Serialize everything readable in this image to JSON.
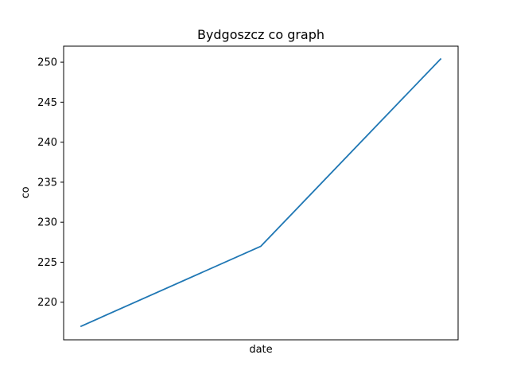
{
  "chart_data": {
    "type": "line",
    "title": "Bydgoszcz co graph",
    "xlabel": "date",
    "ylabel": "co",
    "x_ticks_shown": false,
    "grid": false,
    "legend": "none",
    "ylim": [
      215.3,
      252.0
    ],
    "y_ticks": [
      220,
      225,
      230,
      235,
      240,
      245,
      250
    ],
    "series": [
      {
        "color": "#1f77b4",
        "values": [
          217.0,
          227.0,
          250.4
        ]
      }
    ]
  }
}
